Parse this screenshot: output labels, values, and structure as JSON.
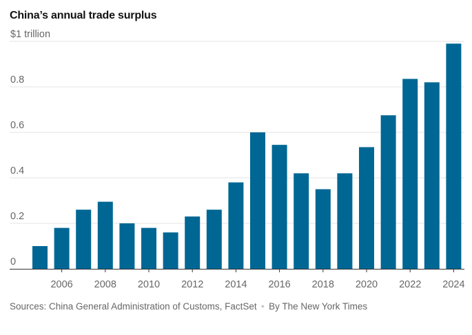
{
  "header": {
    "title": "China’s annual trade surplus"
  },
  "footer": {
    "sources": "Sources: China General Administration of Customs, FactSet",
    "byline": "By The New York Times"
  },
  "colors": {
    "bar": "#006794",
    "grid": "#e3e3e3",
    "axis": "#333333",
    "tick_label": "#666666"
  },
  "chart_data": {
    "type": "bar",
    "title": "China’s annual trade surplus",
    "xlabel": "",
    "ylabel": "",
    "categories": [
      "2005",
      "2006",
      "2007",
      "2008",
      "2009",
      "2010",
      "2011",
      "2012",
      "2013",
      "2014",
      "2015",
      "2016",
      "2017",
      "2018",
      "2019",
      "2020",
      "2021",
      "2022",
      "2023",
      "2024"
    ],
    "x_tick_labels": [
      "2006",
      "2008",
      "2010",
      "2012",
      "2014",
      "2016",
      "2018",
      "2020",
      "2022",
      "2024"
    ],
    "values": [
      0.1,
      0.18,
      0.26,
      0.295,
      0.2,
      0.18,
      0.16,
      0.23,
      0.26,
      0.38,
      0.6,
      0.545,
      0.42,
      0.35,
      0.42,
      0.535,
      0.675,
      0.835,
      0.82,
      0.99
    ],
    "ylim": [
      0,
      1.0
    ],
    "y_ticks": [
      0,
      0.2,
      0.4,
      0.6,
      0.8,
      1.0
    ],
    "y_tick_labels": [
      "0",
      "0.2",
      "0.4",
      "0.6",
      "0.8",
      "$1 trillion"
    ],
    "grid": true
  }
}
